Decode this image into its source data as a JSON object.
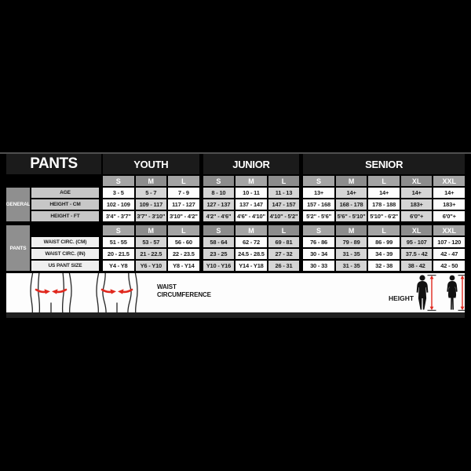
{
  "table": {
    "title": "PANTS",
    "groups": [
      {
        "label": "YOUTH",
        "cols": 3
      },
      {
        "label": "JUNIOR",
        "cols": 3
      },
      {
        "label": "SENIOR",
        "cols": 5
      }
    ],
    "size_headers": [
      "S",
      "M",
      "L",
      "S",
      "M",
      "L",
      "S",
      "M",
      "L",
      "XL",
      "XXL"
    ],
    "sections": [
      {
        "label": "GENERAL",
        "rows": [
          {
            "label": "AGE",
            "values": [
              "3 - 5",
              "5 - 7",
              "7 - 9",
              "8 - 10",
              "10 - 11",
              "11 - 13",
              "13+",
              "14+",
              "14+",
              "14+",
              "14+"
            ]
          },
          {
            "label": "HEIGHT - CM",
            "values": [
              "102 - 109",
              "109 - 117",
              "117 - 127",
              "127 - 137",
              "137 - 147",
              "147 - 157",
              "157 - 168",
              "168 - 178",
              "178 - 188",
              "183+",
              "183+"
            ]
          },
          {
            "label": "HEIGHT - FT",
            "values": [
              "3'4\" - 3'7\"",
              "3'7\" - 3'10\"",
              "3'10\" - 4'2\"",
              "4'2\" - 4'6\"",
              "4'6\" - 4'10\"",
              "4'10\" - 5'2\"",
              "5'2\" - 5'6\"",
              "5'6\" - 5'10\"",
              "5'10\" - 6'2\"",
              "6'0\"+",
              "6'0\"+"
            ]
          }
        ]
      },
      {
        "label": "PANTS",
        "rows": [
          {
            "label": "WAIST CIRC. (CM)",
            "values": [
              "51 - 55",
              "53 - 57",
              "56 - 60",
              "58 - 64",
              "62 - 72",
              "69 - 81",
              "76 - 86",
              "79 - 89",
              "86 - 99",
              "95 - 107",
              "107 - 120"
            ]
          },
          {
            "label": "WAIST CIRC. (IN)",
            "values": [
              "20 - 21.5",
              "21 - 22.5",
              "22 - 23.5",
              "23 - 25",
              "24.5 - 28.5",
              "27 - 32",
              "30 - 34",
              "31 - 35",
              "34 - 39",
              "37.5 - 42",
              "42 - 47"
            ]
          },
          {
            "label": "US PANT SIZE",
            "values": [
              "Y4 - Y8",
              "Y6 - Y10",
              "Y8 - Y14",
              "Y10 - Y16",
              "Y14 - Y18",
              "26 - 31",
              "30 - 33",
              "31 - 35",
              "32 - 38",
              "38 - 42",
              "42 - 50"
            ]
          }
        ]
      }
    ]
  },
  "legend": {
    "waist_label": "WAIST CIRCUMFERENCE",
    "height_label": "HEIGHT"
  },
  "colors": {
    "accent_red": "#e0281e",
    "header_bg": "#1b1b1b",
    "size_header_light": "#a4a4a4",
    "size_header_dark": "#8c8c8c",
    "cell_white": "#fdfdfd",
    "cell_alt": "#d5d5d5",
    "row_label_general_bg": "#c7c7c7",
    "row_label_pants_bg": "#efefef",
    "section_label_bg": "#8f8f8f"
  }
}
